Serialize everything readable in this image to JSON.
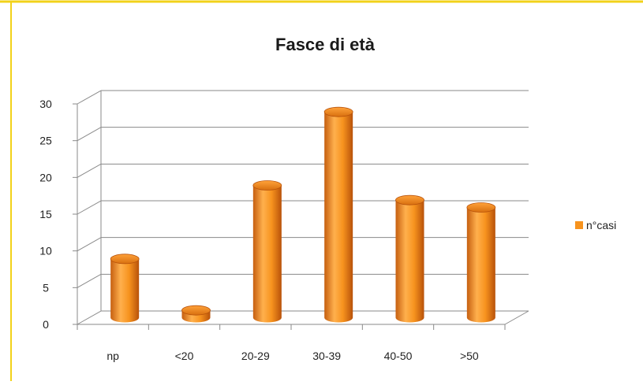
{
  "chart_data": {
    "type": "bar",
    "title": "Fasce di età",
    "categories": [
      "np",
      "<20",
      "20-29",
      "30-39",
      "40-50",
      ">50"
    ],
    "series": [
      {
        "name": "n°casi",
        "values": [
          8,
          1,
          18,
          28,
          16,
          15
        ]
      }
    ],
    "ylim": [
      0,
      30
    ],
    "yticks": [
      0,
      5,
      10,
      15,
      20,
      25,
      30
    ],
    "ytick_labels": [
      "0",
      "5",
      "10",
      "15",
      "20",
      "25",
      "30"
    ],
    "grid": true,
    "legend_position": "right",
    "style": "3d-cylinder",
    "colors": {
      "bar": "#F7931E",
      "bar_dark": "#C25E0C",
      "bar_light": "#FFB45A",
      "frame_border": "#F2D21A",
      "gridline": "#8a8a8a"
    }
  }
}
